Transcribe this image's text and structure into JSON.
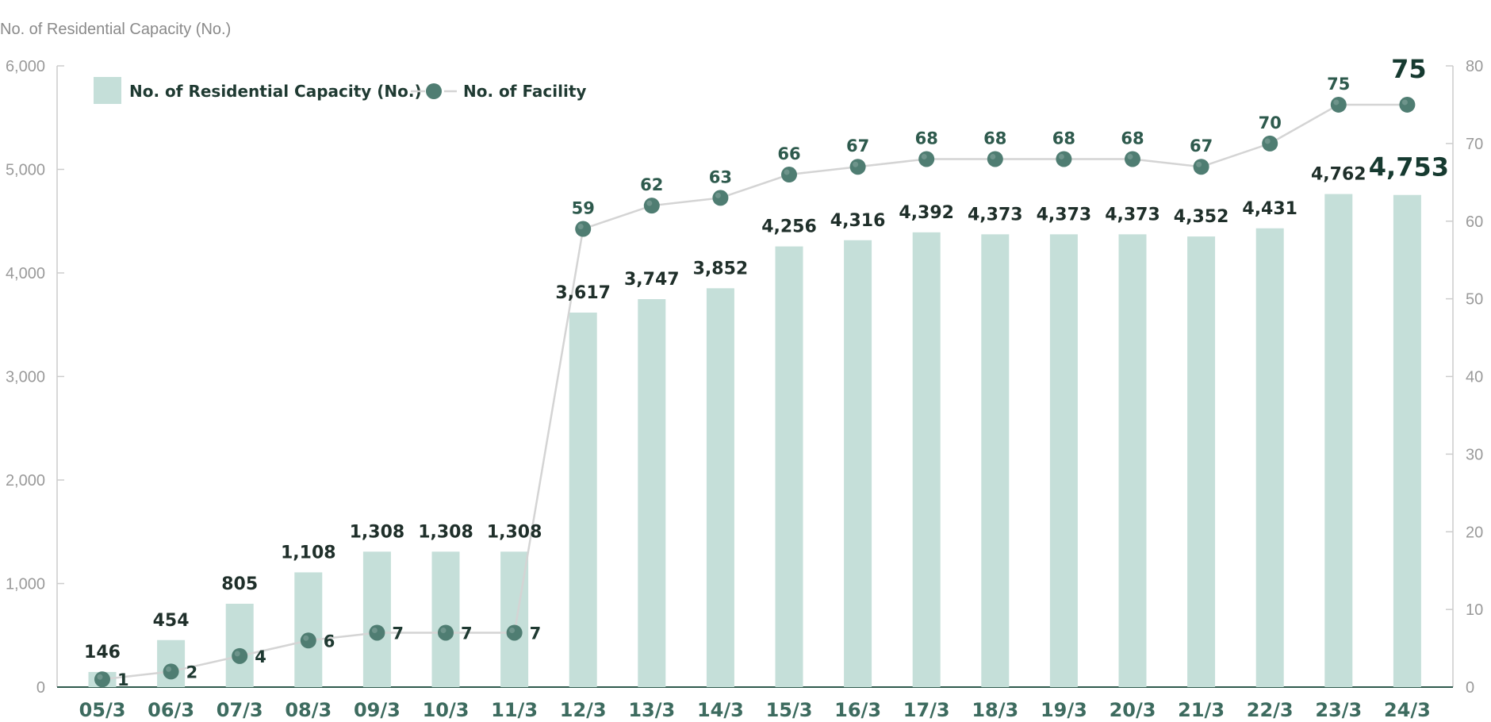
{
  "chart_data": {
    "type": "bar",
    "ylabel": "No. of Residential Capacity (No.)",
    "ylim": [
      0,
      6000
    ],
    "y2lim": [
      0,
      80
    ],
    "y_ticks": [
      "0",
      "1,000",
      "2,000",
      "3,000",
      "4,000",
      "5,000",
      "6,000"
    ],
    "y2_ticks": [
      "0",
      "10",
      "20",
      "30",
      "40",
      "50",
      "60",
      "70",
      "80"
    ],
    "categories": [
      "05/3",
      "06/3",
      "07/3",
      "08/3",
      "09/3",
      "10/3",
      "11/3",
      "12/3",
      "13/3",
      "14/3",
      "15/3",
      "16/3",
      "17/3",
      "18/3",
      "19/3",
      "20/3",
      "21/3",
      "22/3",
      "23/3",
      "24/3"
    ],
    "series": [
      {
        "name": "No. of Residential Capacity (No.)",
        "type": "bar",
        "axis": "left",
        "color": "#c5dfd9",
        "values": [
          146,
          454,
          805,
          1108,
          1308,
          1308,
          1308,
          3617,
          3747,
          3852,
          4256,
          4316,
          4392,
          4373,
          4373,
          4373,
          4352,
          4431,
          4762,
          4753
        ],
        "labels": [
          "146",
          "454",
          "805",
          "1,108",
          "1,308",
          "1,308",
          "1,308",
          "3,617",
          "3,747",
          "3,852",
          "4,256",
          "4,316",
          "4,392",
          "4,373",
          "4,373",
          "4,373",
          "4,352",
          "4,431",
          "4,762",
          "4,753"
        ]
      },
      {
        "name": "No. of Facility",
        "type": "line",
        "axis": "right",
        "color": "#4f7d72",
        "line_color": "#d4d4d4",
        "values": [
          1,
          2,
          4,
          6,
          7,
          7,
          7,
          59,
          62,
          63,
          66,
          67,
          68,
          68,
          68,
          68,
          67,
          70,
          75,
          75
        ],
        "labels": [
          "1",
          "2",
          "4",
          "6",
          "7",
          "7",
          "7",
          "59",
          "62",
          "63",
          "66",
          "67",
          "68",
          "68",
          "68",
          "68",
          "67",
          "70",
          "75",
          "75"
        ]
      }
    ],
    "legend_position": "top-left",
    "grid": false,
    "colors": {
      "axis": "#cccccc",
      "baseline": "#2e5a4d",
      "tick_x": "#3d6b5f"
    }
  }
}
